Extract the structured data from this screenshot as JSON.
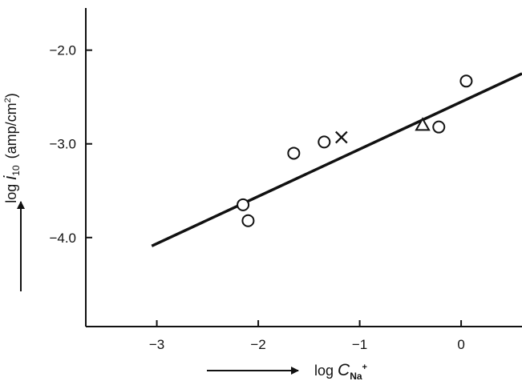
{
  "chart_data": {
    "type": "scatter",
    "xlabel": {
      "prefix": "log ",
      "var": "C",
      "sub": "Na",
      "sup": "+"
    },
    "ylabel": {
      "prefix": "log ",
      "var": "i",
      "sub": "10",
      "unit": "(amp/cm",
      "unit_sup": "2",
      "unit_close": ")"
    },
    "xlim": [
      -3.7,
      0.6
    ],
    "ylim": [
      -4.95,
      -1.55
    ],
    "x_ticks": [
      {
        "value": -3,
        "label": "−3"
      },
      {
        "value": -2,
        "label": "−2"
      },
      {
        "value": -1,
        "label": "−1"
      },
      {
        "value": 0,
        "label": "0"
      }
    ],
    "y_ticks": [
      {
        "value": -2.0,
        "label": "−2.0"
      },
      {
        "value": -3.0,
        "label": "−3.0"
      },
      {
        "value": -4.0,
        "label": "−4.0"
      }
    ],
    "fit_line": {
      "x": [
        -3.05,
        0.6
      ],
      "y": [
        -4.09,
        -2.25
      ]
    },
    "series": [
      {
        "marker": "circle",
        "points": [
          {
            "x": -2.15,
            "y": -3.65
          },
          {
            "x": -2.1,
            "y": -3.82
          },
          {
            "x": -1.65,
            "y": -3.1
          },
          {
            "x": -1.35,
            "y": -2.98
          },
          {
            "x": -0.22,
            "y": -2.82
          },
          {
            "x": 0.05,
            "y": -2.33
          }
        ]
      },
      {
        "marker": "cross",
        "points": [
          {
            "x": -1.18,
            "y": -2.93
          }
        ]
      },
      {
        "marker": "triangle",
        "points": [
          {
            "x": -0.38,
            "y": -2.8
          }
        ]
      }
    ],
    "grid": false,
    "legend": "none"
  }
}
